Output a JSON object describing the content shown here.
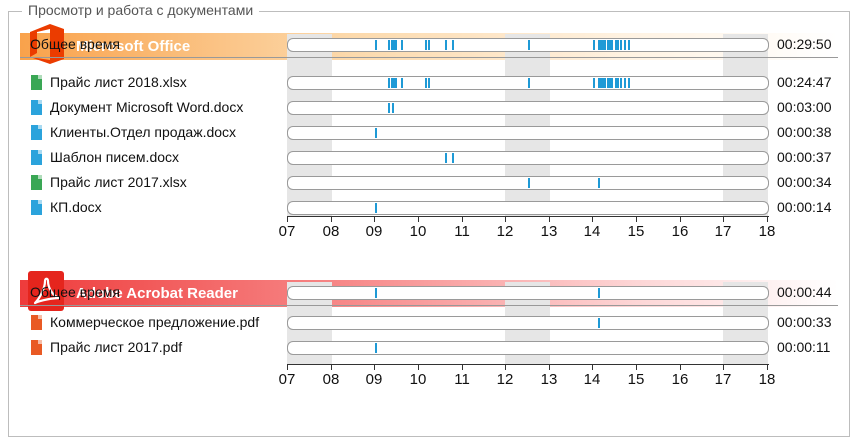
{
  "page": {
    "title": "Просмотр и работа с документами"
  },
  "axis_hours": [
    "07",
    "08",
    "09",
    "10",
    "11",
    "12",
    "13",
    "14",
    "15",
    "16",
    "17",
    "18"
  ],
  "sections": [
    {
      "app": "Microsoft Office",
      "logo_icon": "office-logo-icon",
      "total": {
        "label": "Общее время",
        "time": "00:29:50",
        "activity": [
          9.0,
          9.3,
          9.35,
          9.4,
          9.45,
          9.6,
          10.15,
          10.2,
          10.6,
          10.75,
          12.5,
          14.0,
          14.1,
          14.15,
          14.2,
          14.25,
          14.3,
          14.35,
          14.4,
          14.5,
          14.55,
          14.6,
          14.7,
          14.8
        ]
      },
      "files": [
        {
          "name": "Прайс лист 2018.xlsx",
          "type": "xlsx",
          "time": "00:24:47",
          "activity": [
            9.3,
            9.35,
            9.4,
            9.45,
            9.6,
            10.15,
            10.2,
            12.5,
            14.0,
            14.1,
            14.15,
            14.2,
            14.25,
            14.3,
            14.35,
            14.4,
            14.5,
            14.55,
            14.6,
            14.7,
            14.8
          ]
        },
        {
          "name": "Документ Microsoft Word.docx",
          "type": "docx",
          "time": "00:03:00",
          "activity": [
            9.3,
            9.38
          ]
        },
        {
          "name": "Клиенты.Отдел продаж.docx",
          "type": "docx",
          "time": "00:00:38",
          "activity": [
            9.0
          ]
        },
        {
          "name": "Шаблон писем.docx",
          "type": "docx",
          "time": "00:00:37",
          "activity": [
            10.6,
            10.75
          ]
        },
        {
          "name": "Прайс лист 2017.xlsx",
          "type": "xlsx",
          "time": "00:00:34",
          "activity": [
            12.5,
            14.1
          ]
        },
        {
          "name": "КП.docx",
          "type": "docx",
          "time": "00:00:14",
          "activity": [
            9.0
          ]
        }
      ]
    },
    {
      "app": "Adobe Acrobat Reader",
      "logo_icon": "acrobat-logo-icon",
      "total": {
        "label": "Общее время",
        "time": "00:00:44",
        "activity": [
          9.0,
          14.1
        ]
      },
      "files": [
        {
          "name": "Коммерческое предложение.pdf",
          "type": "pdf",
          "time": "00:00:33",
          "activity": [
            14.1
          ]
        },
        {
          "name": "Прайс лист 2017.pdf",
          "type": "pdf",
          "time": "00:00:11",
          "activity": [
            9.0
          ]
        }
      ]
    }
  ],
  "colors": {
    "activity_mark": "#1f9ad6",
    "office_band": "#f9a24b",
    "acrobat_band": "#ee3b3b",
    "xlsx_icon": "#3aa755",
    "docx_icon": "#2ba3dc",
    "pdf_icon": "#e95a24",
    "shade": "#e6e6e6"
  }
}
